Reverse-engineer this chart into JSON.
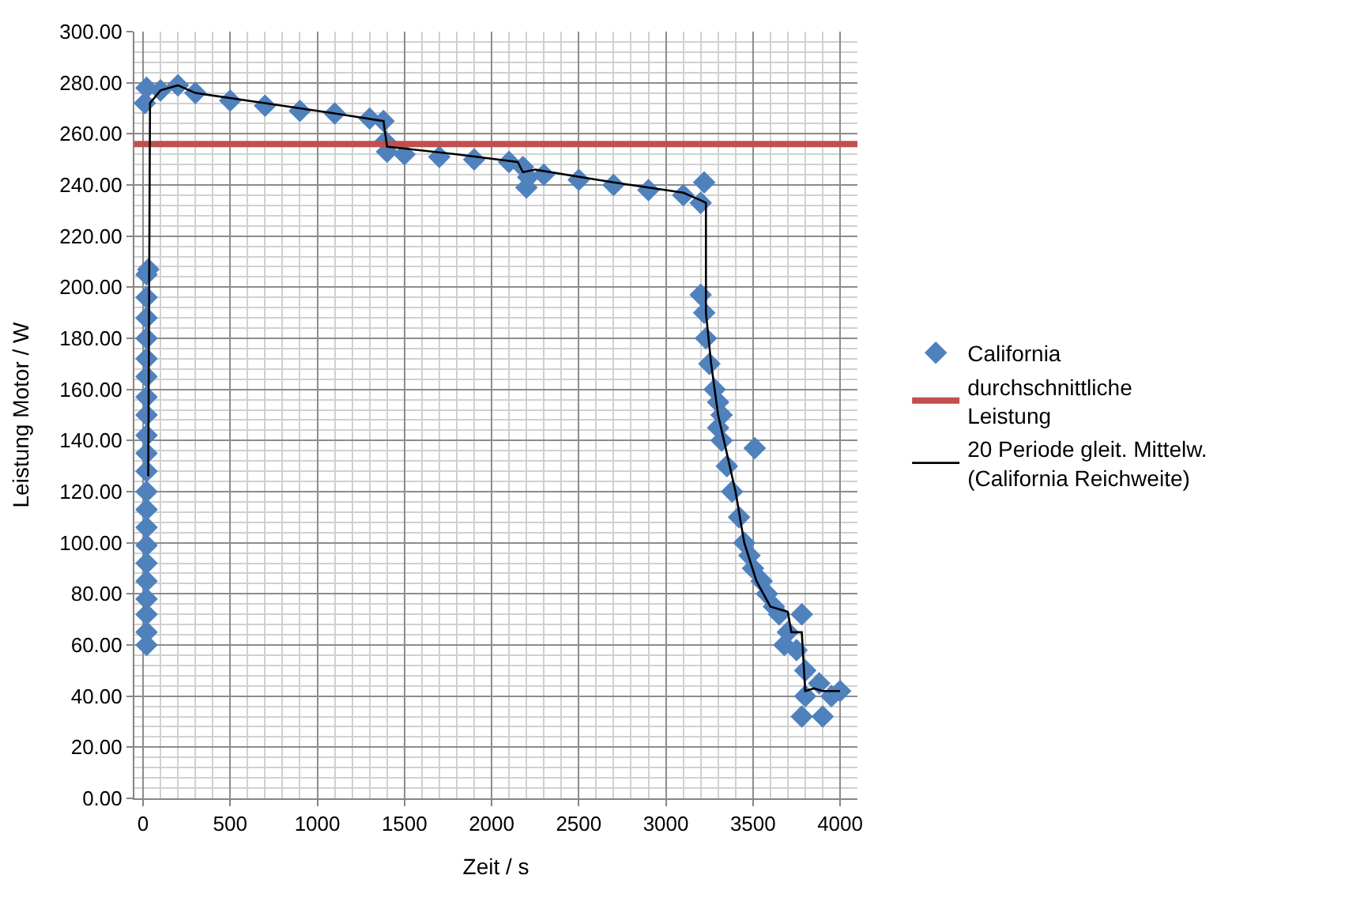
{
  "chart_data": {
    "type": "scatter",
    "xlabel": "Zeit / s",
    "ylabel": "Leistung Motor / W",
    "xlim": [
      -50,
      4100
    ],
    "xticks": [
      0,
      500,
      1000,
      1500,
      2000,
      2500,
      3000,
      3500,
      4000
    ],
    "ylim": [
      0,
      300
    ],
    "yticks": [
      {
        "value": 0,
        "label": "0.00"
      },
      {
        "value": 20,
        "label": "20.00"
      },
      {
        "value": 40,
        "label": "40.00"
      },
      {
        "value": 60,
        "label": "60.00"
      },
      {
        "value": 80,
        "label": "80.00"
      },
      {
        "value": 100,
        "label": "100.00"
      },
      {
        "value": 120,
        "label": "120.00"
      },
      {
        "value": 140,
        "label": "140.00"
      },
      {
        "value": 160,
        "label": "160.00"
      },
      {
        "value": 180,
        "label": "180.00"
      },
      {
        "value": 200,
        "label": "200.00"
      },
      {
        "value": 220,
        "label": "220.00"
      },
      {
        "value": 240,
        "label": "240.00"
      },
      {
        "value": 260,
        "label": "260.00"
      },
      {
        "value": 280,
        "label": "280.00"
      },
      {
        "value": 300,
        "label": "300.00"
      }
    ],
    "grid": true,
    "legend": "right",
    "marker": "diamond",
    "series": [
      {
        "name": "California",
        "color": "#4f81bd",
        "x": [
          20,
          20,
          20,
          20,
          20,
          20,
          20,
          20,
          20,
          20,
          20,
          20,
          20,
          20,
          20,
          20,
          20,
          20,
          20,
          20,
          20,
          30,
          10,
          20,
          100,
          200,
          300,
          500,
          700,
          900,
          1100,
          1300,
          1380,
          1390,
          1400,
          1500,
          1700,
          1900,
          2100,
          2180,
          2200,
          2210,
          2300,
          2500,
          2700,
          2900,
          3100,
          3200,
          3220,
          3200,
          3220,
          3230,
          3250,
          3280,
          3300,
          3320,
          3300,
          3320,
          3350,
          3380,
          3420,
          3450,
          3480,
          3500,
          3510,
          3550,
          3580,
          3620,
          3650,
          3700,
          3680,
          3750,
          3780,
          3800,
          3800,
          3780,
          3900,
          3880,
          4000,
          3950
        ],
        "values": [
          60,
          65,
          72,
          78,
          85,
          92,
          99,
          106,
          113,
          120,
          128,
          135,
          142,
          150,
          157,
          165,
          172,
          180,
          188,
          196,
          205,
          207,
          272,
          278,
          277,
          279,
          276,
          273,
          271,
          269,
          268,
          266,
          265,
          257,
          253,
          252,
          251,
          250,
          249,
          247,
          239,
          243,
          244,
          242,
          240,
          238,
          236,
          233,
          241,
          197,
          190,
          180,
          170,
          160,
          155,
          150,
          145,
          140,
          130,
          120,
          110,
          100,
          95,
          90,
          137,
          85,
          80,
          75,
          72,
          65,
          60,
          58,
          72,
          50,
          40,
          32,
          32,
          45,
          42,
          40
        ]
      },
      {
        "name": "20 Periode gleit. Mittelw.\n(California Reichweite)",
        "color": "#000000",
        "type": "line",
        "marker": "none",
        "line_style": "solid",
        "x": [
          30,
          40,
          100,
          200,
          300,
          700,
          1100,
          1380,
          1400,
          1800,
          2150,
          2180,
          2250,
          2700,
          3100,
          3200,
          3230,
          3230,
          3260,
          3300,
          3400,
          3450,
          3520,
          3600,
          3700,
          3720,
          3780,
          3800,
          3850,
          3900,
          4000
        ],
        "values": [
          126,
          272,
          277,
          279,
          276,
          272,
          268,
          265,
          255,
          252,
          249,
          245,
          246,
          241,
          237,
          234,
          233,
          190,
          170,
          150,
          120,
          100,
          85,
          75,
          73,
          65,
          65,
          42,
          43,
          42,
          42
        ]
      }
    ],
    "ref_lines": [
      {
        "axis": "y",
        "value": 256,
        "label": "durchschnittliche\nLeistung",
        "color": "#c0504d",
        "line_style": "solid"
      }
    ]
  }
}
